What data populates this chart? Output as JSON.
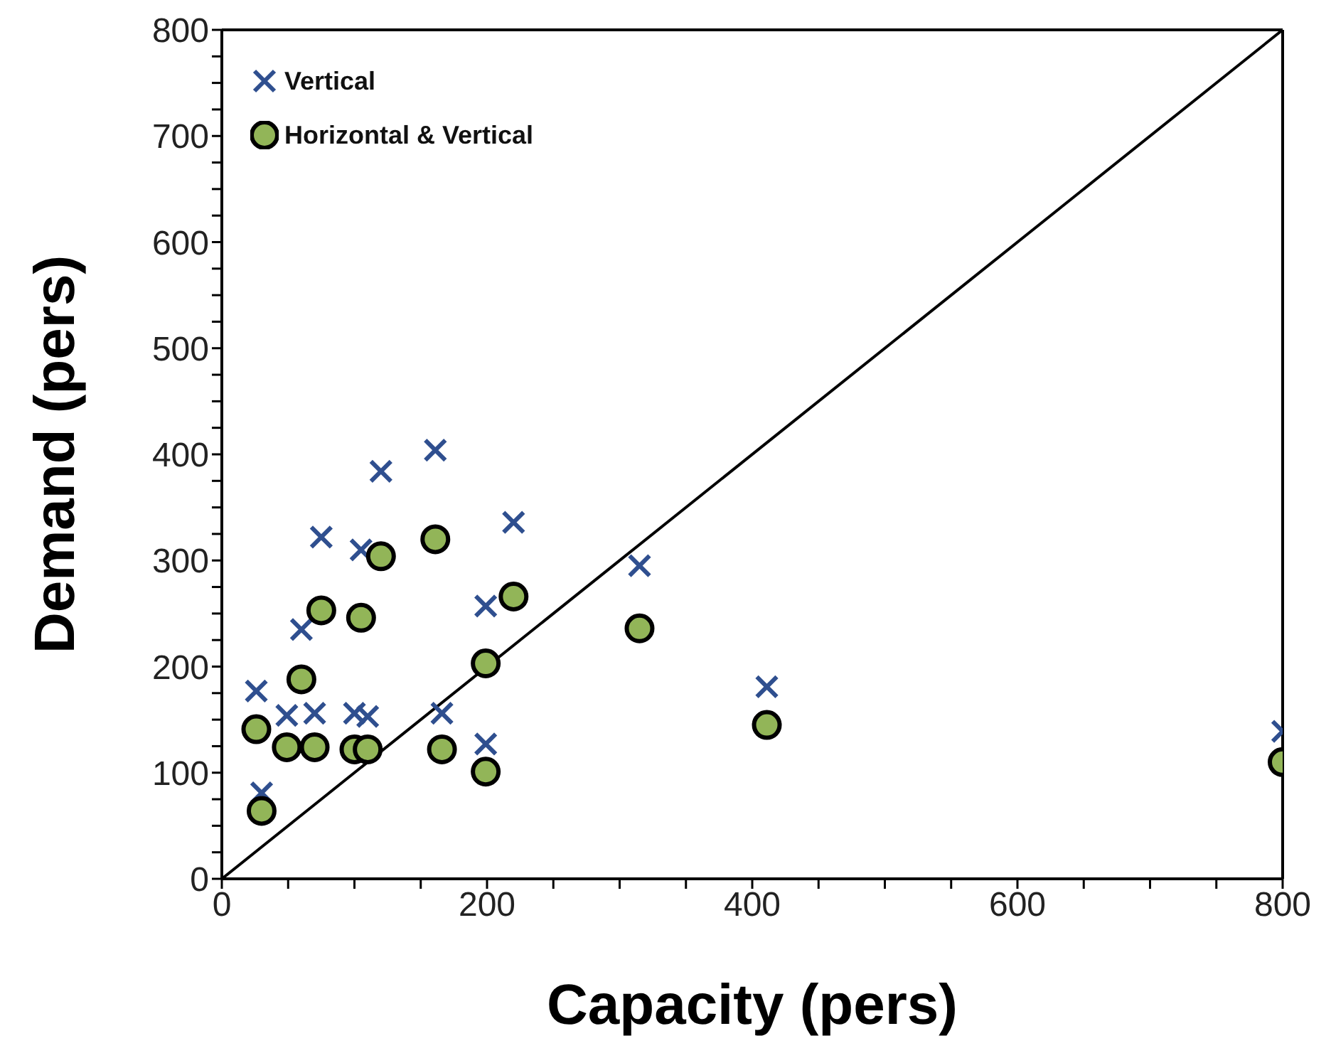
{
  "chart_data": {
    "type": "scatter",
    "xlabel": "Capacity (pers)",
    "ylabel": "Demand (pers)",
    "xlim": [
      0,
      800
    ],
    "ylim": [
      0,
      800
    ],
    "xticks": [
      0,
      {
        "value": 50,
        "label": null
      },
      {
        "value": 100,
        "label": null
      },
      {
        "value": 150,
        "label": null
      },
      200,
      {
        "value": 250,
        "label": null
      },
      {
        "value": 300,
        "label": null
      },
      {
        "value": 350,
        "label": null
      },
      400,
      {
        "value": 450,
        "label": null
      },
      {
        "value": 500,
        "label": null
      },
      {
        "value": 550,
        "label": null
      },
      600,
      {
        "value": 650,
        "label": null
      },
      {
        "value": 700,
        "label": null
      },
      {
        "value": 750,
        "label": null
      },
      800
    ],
    "yticks": [
      0,
      {
        "value": 25,
        "label": null
      },
      {
        "value": 50,
        "label": null
      },
      {
        "value": 75,
        "label": null
      },
      100,
      {
        "value": 125,
        "label": null
      },
      {
        "value": 150,
        "label": null
      },
      {
        "value": 175,
        "label": null
      },
      200,
      {
        "value": 225,
        "label": null
      },
      {
        "value": 250,
        "label": null
      },
      {
        "value": 275,
        "label": null
      },
      300,
      {
        "value": 325,
        "label": null
      },
      {
        "value": 350,
        "label": null
      },
      {
        "value": 375,
        "label": null
      },
      400,
      {
        "value": 425,
        "label": null
      },
      {
        "value": 450,
        "label": null
      },
      {
        "value": 475,
        "label": null
      },
      500,
      {
        "value": 525,
        "label": null
      },
      {
        "value": 550,
        "label": null
      },
      {
        "value": 575,
        "label": null
      },
      600,
      {
        "value": 625,
        "label": null
      },
      {
        "value": 650,
        "label": null
      },
      {
        "value": 675,
        "label": null
      },
      700,
      {
        "value": 725,
        "label": null
      },
      {
        "value": 750,
        "label": null
      },
      {
        "value": 775,
        "label": null
      },
      800
    ],
    "legend": "top left",
    "series": [
      {
        "name": "Vertical",
        "color": "#2f4f8f",
        "marker": "cross",
        "x": [
          26,
          30,
          49,
          60,
          70,
          75,
          100,
          105,
          110,
          120,
          161,
          166,
          199,
          199,
          220,
          315,
          411,
          800
        ],
        "values": [
          177,
          81,
          154,
          235,
          156,
          322,
          156,
          310,
          153,
          384,
          404,
          156,
          257,
          127,
          336,
          295,
          181,
          139
        ]
      },
      {
        "name": "Horizontal & Vertical",
        "color": "#92b558",
        "marker": "circle",
        "x": [
          26,
          30,
          49,
          60,
          70,
          75,
          100,
          105,
          110,
          120,
          161,
          166,
          199,
          199,
          220,
          315,
          411,
          800
        ],
        "values": [
          141,
          64,
          124,
          188,
          124,
          253,
          122,
          246,
          122,
          304,
          320,
          122,
          203,
          101,
          266,
          236,
          145,
          110
        ]
      },
      {
        "type": "line",
        "color": "#000000",
        "marker": "none",
        "line_style": "solid",
        "x": [
          0,
          800
        ],
        "values": [
          0,
          800
        ]
      }
    ]
  }
}
